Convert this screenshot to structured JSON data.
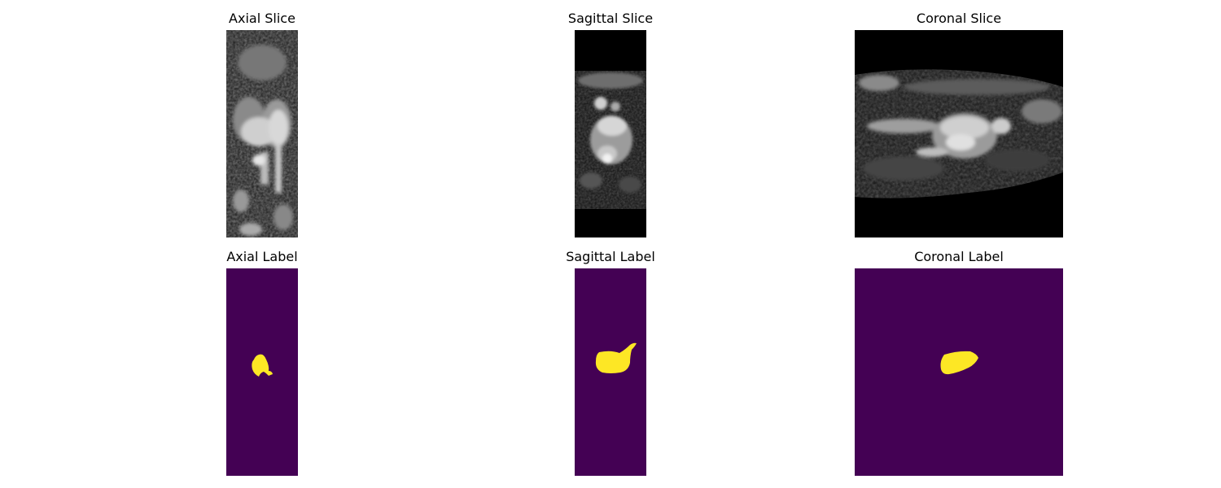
{
  "panels": {
    "axial_slice": {
      "title": "Axial Slice"
    },
    "sagittal_slice": {
      "title": "Sagittal Slice"
    },
    "coronal_slice": {
      "title": "Coronal Slice"
    },
    "axial_label": {
      "title": "Axial Label"
    },
    "sagittal_label": {
      "title": "Sagittal Label"
    },
    "coronal_label": {
      "title": "Coronal Label"
    }
  },
  "colors": {
    "label_background": "#440154",
    "label_foreground": "#fde725",
    "slice_background": "#000000"
  }
}
